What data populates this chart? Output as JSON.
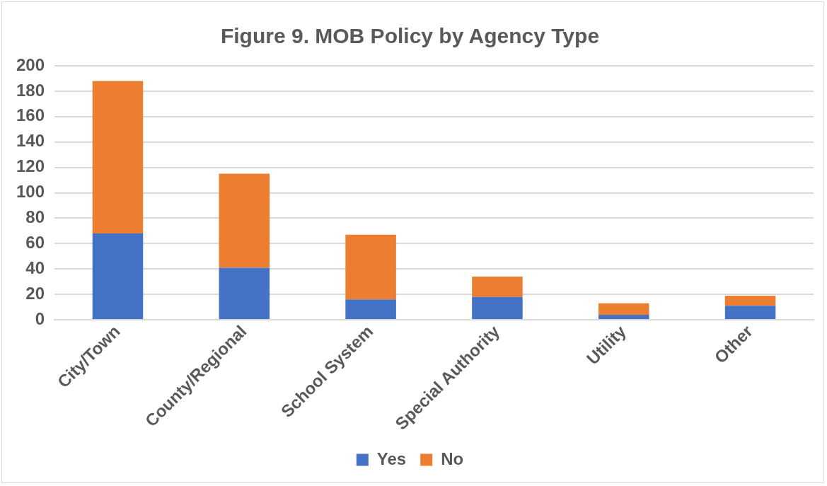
{
  "chart_data": {
    "type": "bar",
    "title": "Figure 9. MOB Policy by Agency Type",
    "categories": [
      "City/Town",
      "County/Regional",
      "School System",
      "Special Authority",
      "Utility",
      "Other"
    ],
    "stacked": true,
    "series": [
      {
        "name": "Yes",
        "color": "#4472c4",
        "values": [
          68,
          41,
          16,
          18,
          4,
          11
        ]
      },
      {
        "name": "No",
        "color": "#ed7d31",
        "values": [
          120,
          74,
          51,
          16,
          9,
          8
        ]
      }
    ],
    "ylim": [
      0,
      200
    ],
    "yticks": [
      0,
      20,
      40,
      60,
      80,
      100,
      120,
      140,
      160,
      180,
      200
    ],
    "grid": "y",
    "legend": "bottom"
  }
}
